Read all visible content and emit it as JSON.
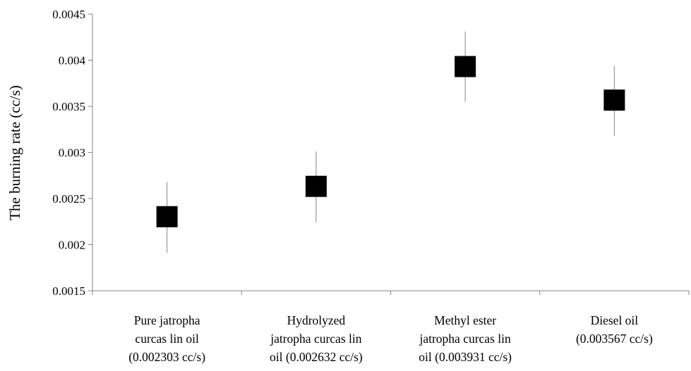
{
  "chart_data": {
    "type": "scatter",
    "ylabel": "The burning rate (cc/s)",
    "ylim": [
      0.0015,
      0.0045
    ],
    "yticks": [
      "0.0015",
      "0.002",
      "0.0025",
      "0.003",
      "0.0035",
      "0.004",
      "0.0045"
    ],
    "categories": [
      [
        "Pure jatropha",
        "curcas lin oil",
        "(0.002303 cc/s)"
      ],
      [
        "Hydrolyzed",
        "jatropha curcas lin",
        "oil (0.002632 cc/s)"
      ],
      [
        "Methyl ester",
        "jatropha curcas lin",
        "oil  (0.003931 cc/s)"
      ],
      [
        "Diesel oil",
        "(0.003567 cc/s)"
      ]
    ],
    "values": [
      0.002303,
      0.002632,
      0.003931,
      0.003567
    ],
    "error_bars": [
      {
        "low": 0.00191,
        "high": 0.00268
      },
      {
        "low": 0.00224,
        "high": 0.00301
      },
      {
        "low": 0.00355,
        "high": 0.00431
      },
      {
        "low": 0.00318,
        "high": 0.00394
      }
    ],
    "marker": "square",
    "marker_color": "#000000",
    "grid": false,
    "legend": "none"
  }
}
